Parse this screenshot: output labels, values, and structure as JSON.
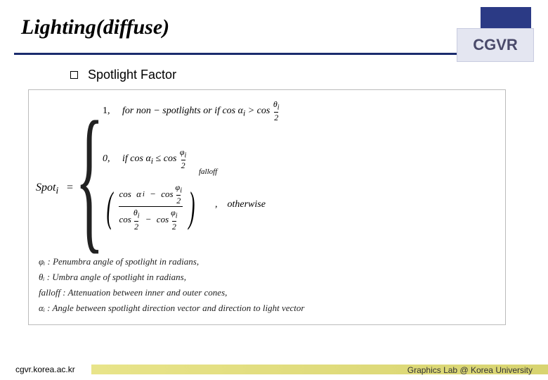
{
  "header": {
    "title": "Lighting(diffuse)",
    "badge": "CGVR"
  },
  "content": {
    "bullet_label": "Spotlight Factor"
  },
  "formula": {
    "lhs": "Spot",
    "lhs_sub": "i",
    "eq": "=",
    "case1_val": "1,",
    "case1_cond": "for non − spotlights or if  cos α",
    "case1_cond_sub": "i",
    "case1_gt": " > cos ",
    "theta": "θ",
    "theta_sub": "i",
    "phi": "φ",
    "phi_sub": "i",
    "two": "2",
    "case2_val": "0,",
    "case2_cond": "if  cos α",
    "case2_cond_sub": "i",
    "case2_le": " ≤ cos ",
    "cos": "cos",
    "alpha": "α",
    "minus": "−",
    "falloff": "falloff",
    "comma": ",",
    "otherwise": "otherwise",
    "def1": "φᵢ : Penumbra angle of spotlight in radians,",
    "def2": "θᵢ : Umbra angle of spotlight in radians,",
    "def3": "falloff : Attenuation between inner and outer cones,",
    "def4": "αᵢ : Angle between spotlight direction vector and direction to light vector"
  },
  "footer": {
    "left": "cgvr.korea.ac.kr",
    "right": "Graphics Lab @ Korea University"
  },
  "colors": {
    "rule": "#1a2b6d",
    "badge_back": "#2b3a85",
    "badge_front_bg": "#e4e6f1",
    "badge_text": "#4a4a6a",
    "footer_bar_from": "#e8e48a",
    "footer_bar_to": "#d8d470"
  }
}
